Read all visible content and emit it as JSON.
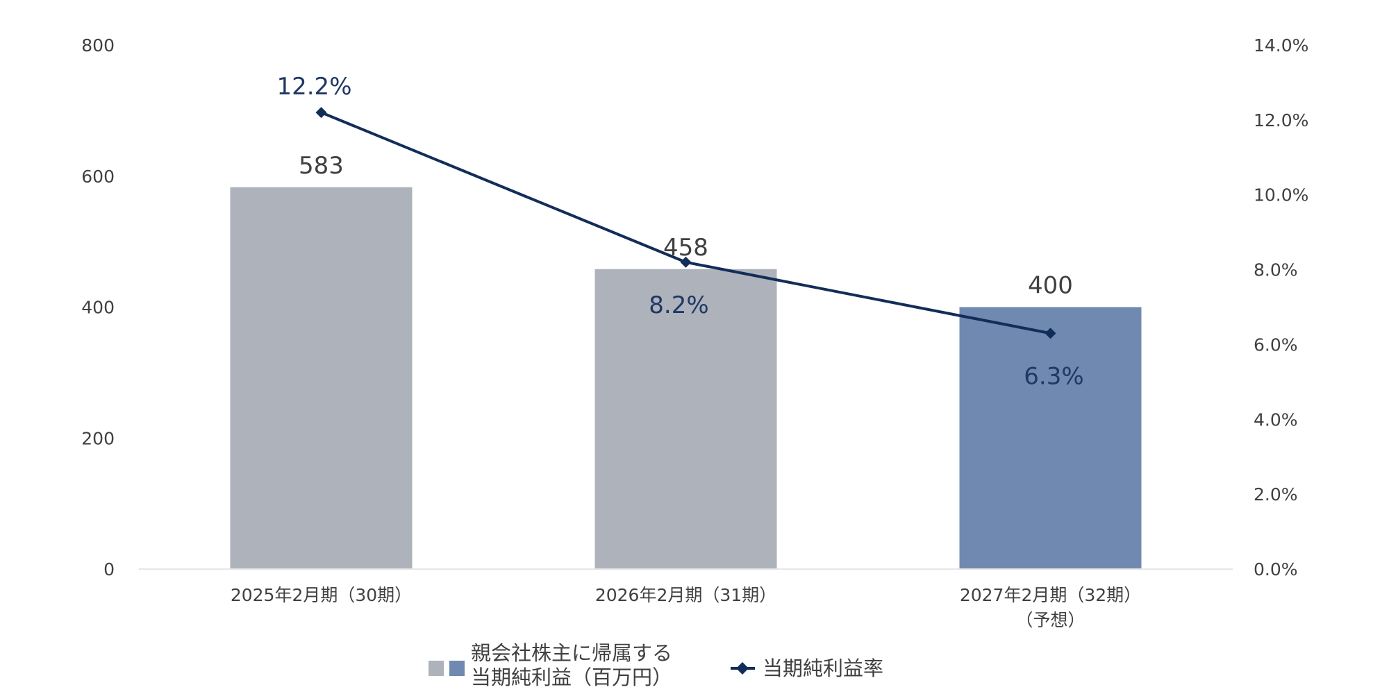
{
  "colors": {
    "bar_actual": "#AEB2BB",
    "bar_forecast": "#7089B0",
    "line": "#132D59",
    "axis_line": "#E6E6E6",
    "text": "#404040",
    "rate_text": "#1F3864"
  },
  "chart_data": {
    "type": "bar",
    "categories": [
      [
        "2025年2月期（30期）"
      ],
      [
        "2026年2月期（31期）"
      ],
      [
        "2027年2月期（32期）",
        "（予想）"
      ]
    ],
    "series": [
      {
        "name": "親会社株主に帰属する当期純利益（百万円）",
        "type": "bar",
        "axis": "left",
        "values": [
          583,
          458,
          400
        ],
        "data_labels": [
          "583",
          "458",
          "400"
        ],
        "colors": [
          "#AEB2BB",
          "#AEB2BB",
          "#7089B0"
        ]
      },
      {
        "name": "当期純利益率",
        "type": "line",
        "axis": "right",
        "marker": "diamond",
        "values": [
          12.2,
          8.2,
          6.3
        ],
        "data_labels": [
          "12.2%",
          "8.2%",
          "6.3%"
        ]
      }
    ],
    "left_axis": {
      "range": [
        0,
        800
      ],
      "ticks": [
        0,
        200,
        400,
        600,
        800
      ],
      "tick_labels": [
        "0",
        "200",
        "400",
        "600",
        "800"
      ]
    },
    "right_axis": {
      "range": [
        0,
        14
      ],
      "ticks": [
        0,
        2,
        4,
        6,
        8,
        10,
        12,
        14
      ],
      "tick_labels": [
        "0.0%",
        "2.0%",
        "4.0%",
        "6.0%",
        "8.0%",
        "10.0%",
        "12.0%",
        "14.0%"
      ]
    },
    "grid": false,
    "legend": {
      "position": "bottom",
      "bar_entry_lines": [
        "親会社株主に帰属する",
        "当期純利益（百万円）"
      ],
      "line_entry": "当期純利益率"
    }
  }
}
